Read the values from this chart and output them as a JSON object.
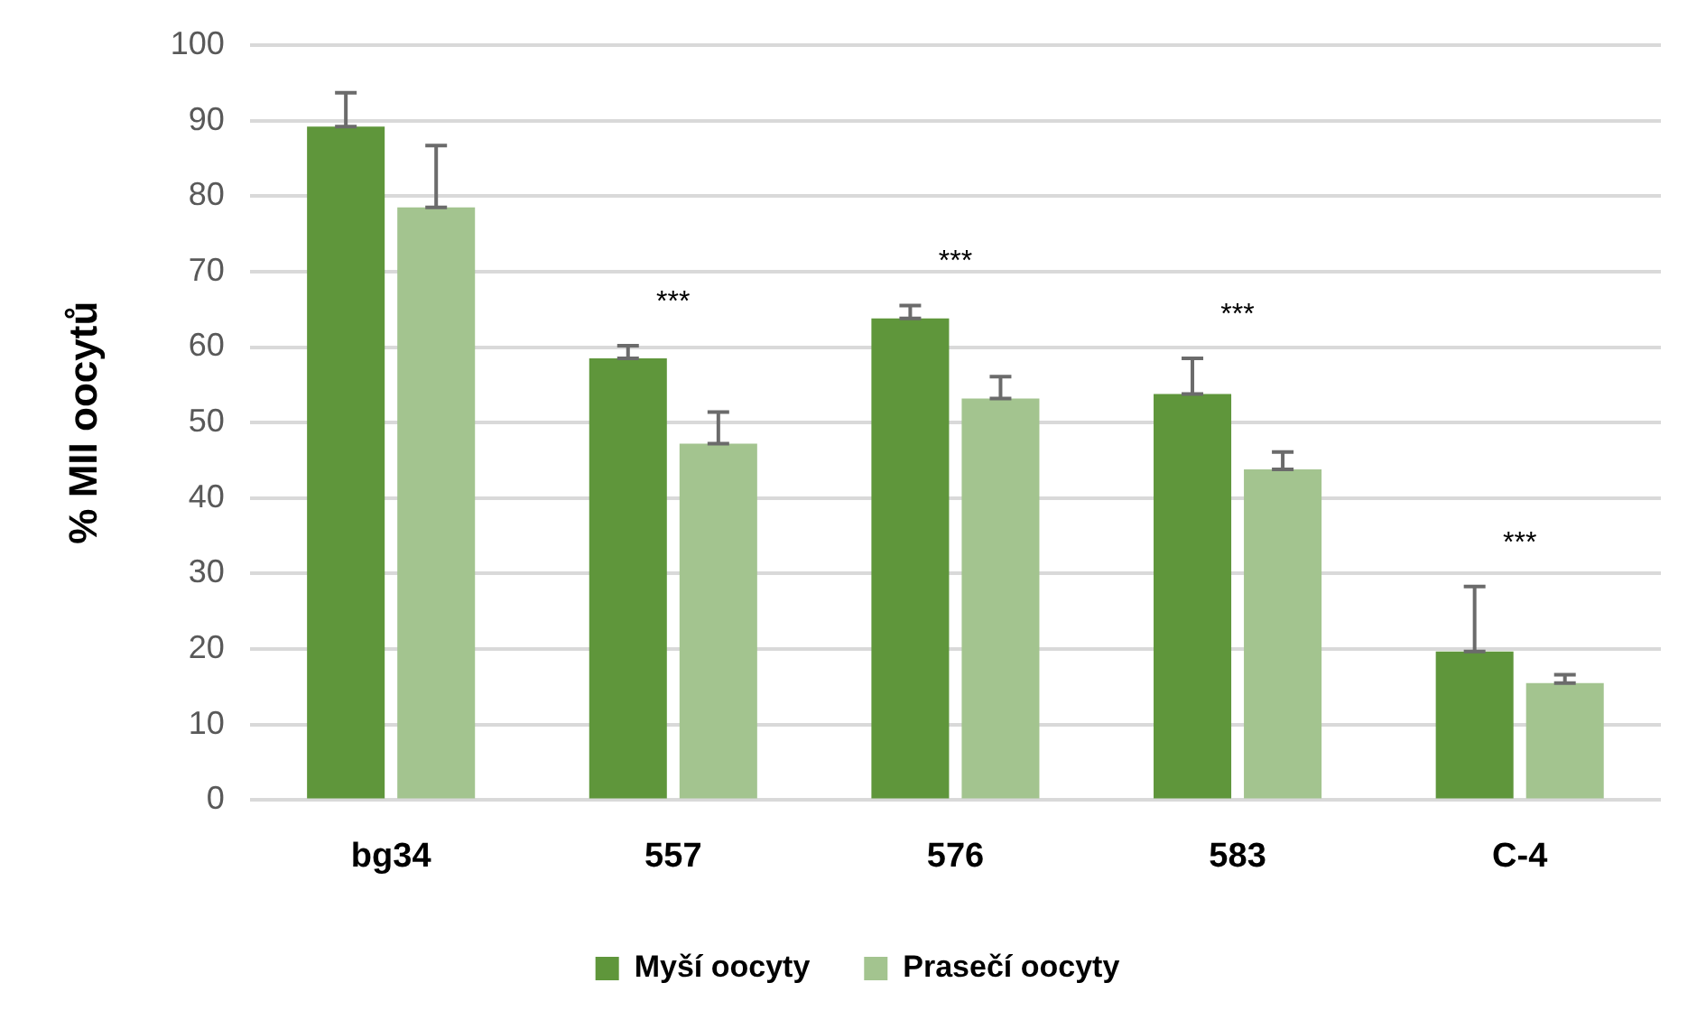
{
  "chart_data": {
    "type": "bar",
    "ylabel": "% MII oocytů",
    "categories": [
      "bg34",
      "557",
      "576",
      "583",
      "C-4"
    ],
    "series": [
      {
        "name": "Myší oocyty",
        "color": "#5f963b",
        "values": [
          89.2,
          58.5,
          63.8,
          53.8,
          19.7
        ],
        "errors": [
          [
            89.2,
            93.7
          ],
          [
            58.5,
            60.2
          ],
          [
            63.8,
            65.5
          ],
          [
            53.8,
            58.5
          ],
          [
            19.7,
            28.3
          ]
        ]
      },
      {
        "name": "Prasečí oocyty",
        "color": "#a3c48f",
        "values": [
          78.5,
          47.2,
          53.2,
          43.8,
          15.5
        ],
        "errors": [
          [
            78.5,
            86.7
          ],
          [
            47.2,
            51.4
          ],
          [
            53.2,
            56.1
          ],
          [
            43.8,
            46.1
          ],
          [
            15.5,
            16.6
          ]
        ]
      }
    ],
    "annotations": [
      "***",
      "***",
      "***",
      "***"
    ],
    "ylim": [
      0,
      100
    ],
    "yticks": [
      0,
      10,
      20,
      30,
      40,
      50,
      60,
      70,
      80,
      90,
      100
    ],
    "grid": "y",
    "legend": "bottom"
  }
}
